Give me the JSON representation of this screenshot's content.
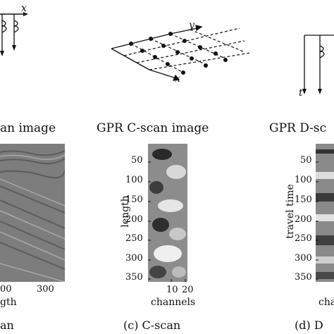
{
  "panel_a": {
    "axis_x_letter": "x",
    "title": "an image",
    "xticks": [
      "00",
      "300"
    ],
    "xlabel": "gth",
    "caption": "an"
  },
  "panel_c": {
    "axis_x_letter": "x",
    "axis_y_letter": "y",
    "title": "GPR C-scan image",
    "yticks": [
      "50",
      "100",
      "150",
      "200",
      "250",
      "300",
      "350"
    ],
    "xticks": [
      "10",
      "20"
    ],
    "ylabel": "length",
    "xlabel": "channels",
    "caption": "(c)  C-scan"
  },
  "panel_d": {
    "axis_t_letter": "t",
    "title": "GPR D-sc",
    "yticks": [
      "50",
      "100",
      "150",
      "200",
      "250",
      "300",
      "350"
    ],
    "ylabel": "travel time",
    "xlabel": "chai",
    "caption": "(d)  D"
  },
  "colors": {
    "ink": "#111111",
    "image_gray": "#808080"
  }
}
